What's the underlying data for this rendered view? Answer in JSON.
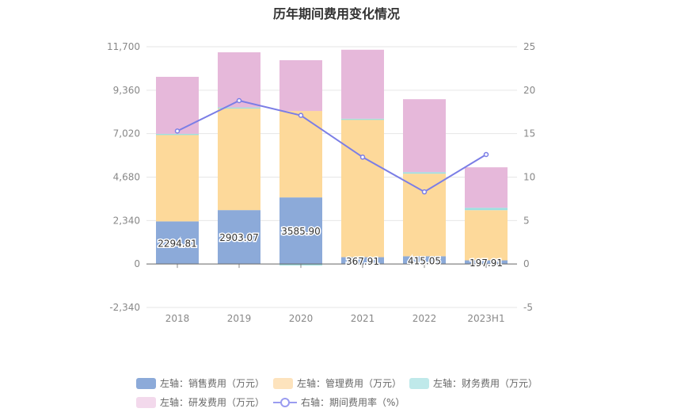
{
  "chart_data": {
    "type": "bar",
    "title": "历年期间费用变化情况",
    "categories": [
      "2018",
      "2019",
      "2020",
      "2021",
      "2022",
      "2023H1"
    ],
    "left_axis": {
      "ylim": [
        -2340,
        11700
      ],
      "ticks": [
        "-2,340",
        "0",
        "2,340",
        "4,680",
        "7,020",
        "9,360",
        "11,700"
      ],
      "tick_values": [
        -2340,
        0,
        2340,
        4680,
        7020,
        9360,
        11700
      ]
    },
    "right_axis": {
      "ylim": [
        -5,
        25
      ],
      "ticks": [
        "-5",
        "0",
        "5",
        "10",
        "15",
        "20",
        "25"
      ],
      "tick_values": [
        -5,
        0,
        5,
        10,
        15,
        20,
        25
      ]
    },
    "grid": true,
    "legend_position": "bottom",
    "series": [
      {
        "name": "左轴：销售费用（万元）",
        "type": "bar",
        "axis": "left",
        "color": "#8caad9",
        "values": [
          2294.81,
          2903.07,
          3585.9,
          367.91,
          415.05,
          197.91
        ],
        "labels": [
          "2294.81",
          "2903.07",
          "3585.90",
          "367.91",
          "415.05",
          "197.91"
        ]
      },
      {
        "name": "左轴：管理费用（万元）",
        "type": "bar",
        "axis": "left",
        "color": "#fdd99a",
        "values": [
          4665,
          5509,
          4655,
          7446,
          4450,
          2700
        ]
      },
      {
        "name": "左轴：财务费用（万元）",
        "type": "bar",
        "axis": "left",
        "color": "#9fdfe0",
        "values": [
          50,
          20,
          -80,
          10,
          80,
          130
        ]
      },
      {
        "name": "左轴：研发费用（万元）",
        "type": "bar",
        "axis": "left",
        "color": "#e6b8da",
        "values": [
          3070,
          2970,
          2733,
          3715,
          3930,
          2180
        ]
      },
      {
        "name": "右轴：期间费用率（%）",
        "type": "line",
        "axis": "right",
        "color": "#7b7ee6",
        "values": [
          15.3,
          18.8,
          17.1,
          12.3,
          8.3,
          12.6
        ]
      }
    ]
  },
  "legend_colors": {
    "sales": "#8caad9",
    "mgmt": "#fde3bd",
    "fin": "#bfe9ea",
    "rd": "#f3d9ec",
    "line": "#9a9cf0"
  }
}
